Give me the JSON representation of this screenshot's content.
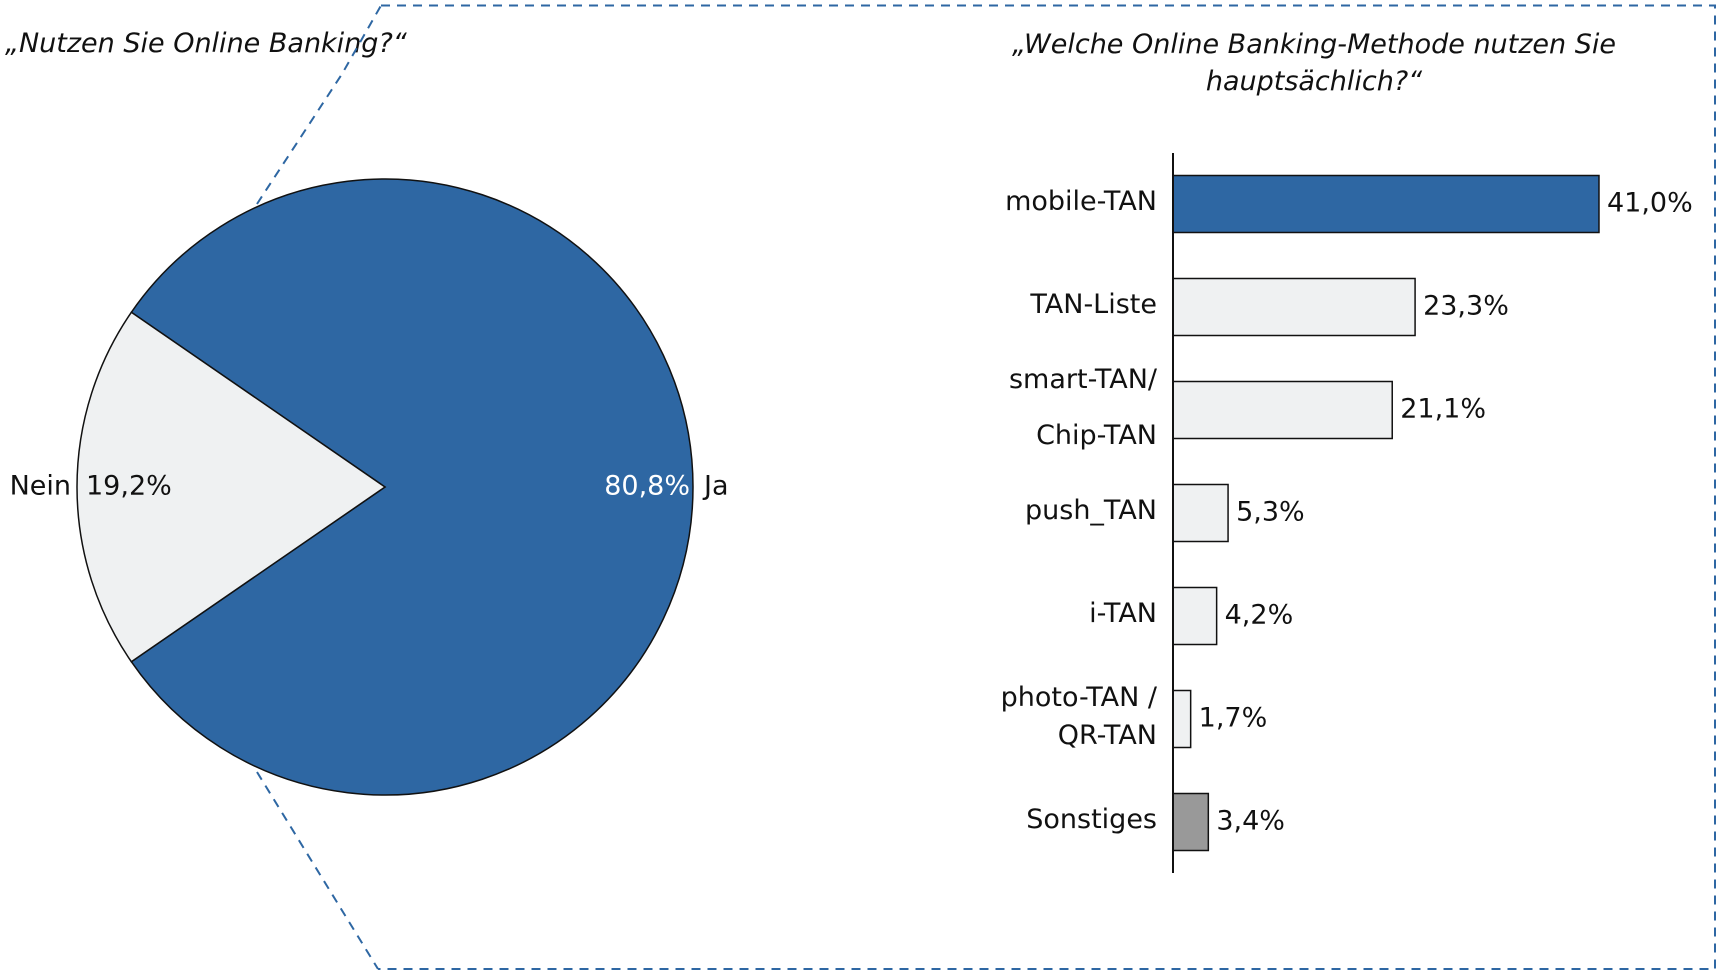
{
  "chart_data": [
    {
      "type": "pie",
      "title": "„Nutzen Sie Online Banking?“",
      "categories": [
        "Ja",
        "Nein"
      ],
      "values": [
        80.8,
        19.2
      ],
      "value_labels": [
        "80,8%",
        "19,2%"
      ],
      "colors": [
        "#2e67a3",
        "#eff1f2"
      ]
    },
    {
      "type": "barh",
      "title": "„Welche Online Banking-Methode nutzen Sie hauptsächlich?“",
      "categories": [
        "mobile-TAN",
        "TAN-Liste",
        "smart-TAN/\nChip-TAN",
        "push_TAN",
        "i-TAN",
        "photo-TAN /\nQR-TAN",
        "Sonstiges"
      ],
      "values": [
        41.0,
        23.3,
        21.1,
        5.3,
        4.2,
        1.7,
        3.4
      ],
      "value_labels": [
        "41,0%",
        "23,3%",
        "21,1%",
        "5,3%",
        "4,2%",
        "1,7%",
        "3,4%"
      ],
      "colors": [
        "#2e67a3",
        "#eff1f2",
        "#eff1f2",
        "#eff1f2",
        "#eff1f2",
        "#eff1f2",
        "#999999"
      ]
    }
  ]
}
